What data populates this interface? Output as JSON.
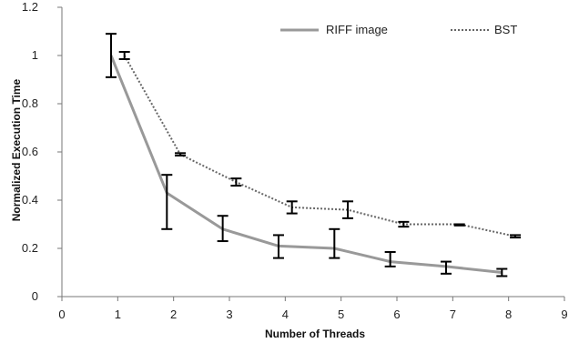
{
  "chart_data": {
    "type": "line",
    "title": "",
    "xlabel": "Number of Threads",
    "ylabel": "Normalized Execution Time",
    "xlim": [
      0,
      9
    ],
    "ylim": [
      0,
      1.2
    ],
    "x_ticks": [
      "0",
      "1",
      "2",
      "3",
      "4",
      "5",
      "6",
      "7",
      "8",
      "9"
    ],
    "y_ticks": [
      "0",
      "0.2",
      "0.4",
      "0.6",
      "0.8",
      "1",
      "1.2"
    ],
    "grid": false,
    "legend_position": "top-right",
    "series": [
      {
        "name": "RIFF image",
        "style": "solid",
        "color": "#999999",
        "x": [
          0.88,
          1.88,
          2.88,
          3.88,
          4.88,
          5.88,
          6.88,
          7.88
        ],
        "y": [
          1.0,
          0.43,
          0.28,
          0.21,
          0.2,
          0.145,
          0.125,
          0.1
        ],
        "err_low": [
          0.91,
          0.28,
          0.23,
          0.16,
          0.16,
          0.125,
          0.095,
          0.085
        ],
        "err_high": [
          1.09,
          0.505,
          0.335,
          0.255,
          0.28,
          0.185,
          0.145,
          0.115
        ]
      },
      {
        "name": "BST",
        "style": "dotted",
        "color": "#666666",
        "x": [
          1.12,
          2.12,
          3.12,
          4.12,
          5.12,
          6.12,
          7.12,
          8.12
        ],
        "y": [
          1.0,
          0.59,
          0.475,
          0.37,
          0.36,
          0.3,
          0.3,
          0.25
        ],
        "err_low": [
          0.985,
          0.585,
          0.46,
          0.345,
          0.325,
          0.29,
          0.295,
          0.245
        ],
        "err_high": [
          1.015,
          0.595,
          0.49,
          0.395,
          0.395,
          0.31,
          0.3,
          0.255
        ]
      }
    ]
  }
}
